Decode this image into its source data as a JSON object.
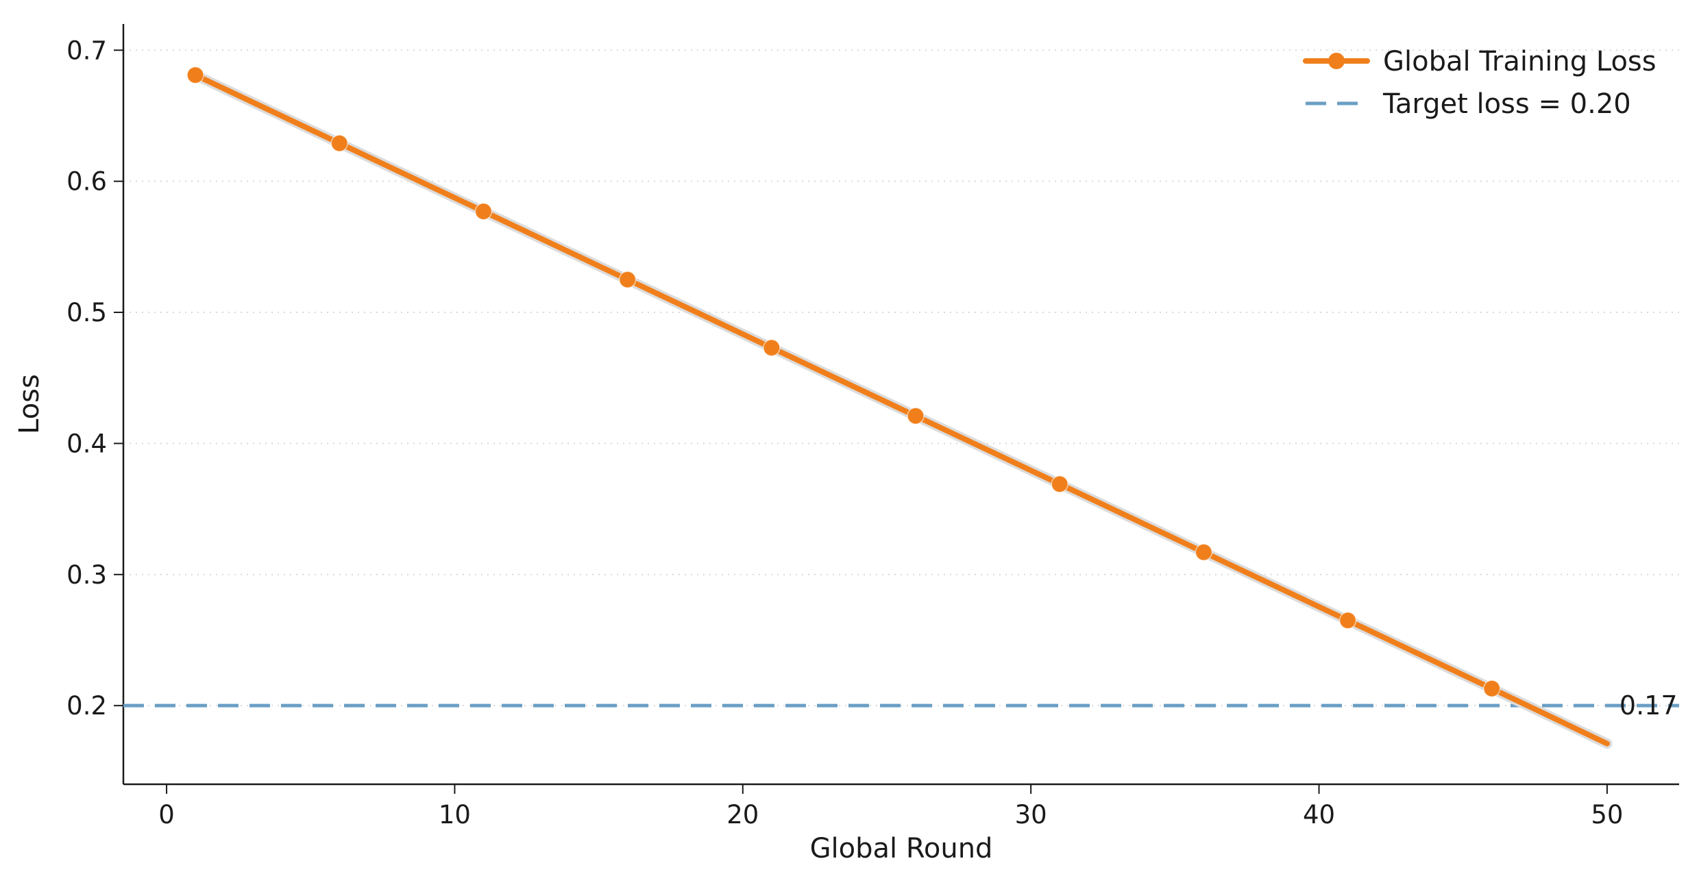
{
  "chart_data": {
    "type": "line",
    "title": "",
    "xlabel": "Global Round",
    "ylabel": "Loss",
    "xlim": [
      -1.5,
      52.5
    ],
    "ylim": [
      0.14,
      0.72
    ],
    "xticks": [
      0,
      10,
      20,
      30,
      40,
      50
    ],
    "yticks": [
      0.2,
      0.3,
      0.4,
      0.5,
      0.6,
      0.7
    ],
    "xtick_labels": [
      "0",
      "10",
      "20",
      "30",
      "40",
      "50"
    ],
    "ytick_labels": [
      "0.2",
      "0.3",
      "0.4",
      "0.5",
      "0.6",
      "0.7"
    ],
    "grid": "horizontal dotted",
    "legend_position": "top-right",
    "series": [
      {
        "name": "Global Training Loss",
        "color": "#f07f1b",
        "x": [
          1,
          6,
          11,
          16,
          21,
          26,
          31,
          36,
          41,
          46,
          50
        ],
        "y": [
          0.681,
          0.629,
          0.577,
          0.525,
          0.473,
          0.421,
          0.369,
          0.317,
          0.265,
          0.213,
          0.171
        ],
        "marker_every": 5
      }
    ],
    "target_line": {
      "label": "Target loss = 0.20",
      "value": 0.2,
      "color": "#6b9fc4"
    },
    "end_annotation": {
      "text": "0.17",
      "x": 50,
      "y": 0.2
    }
  }
}
